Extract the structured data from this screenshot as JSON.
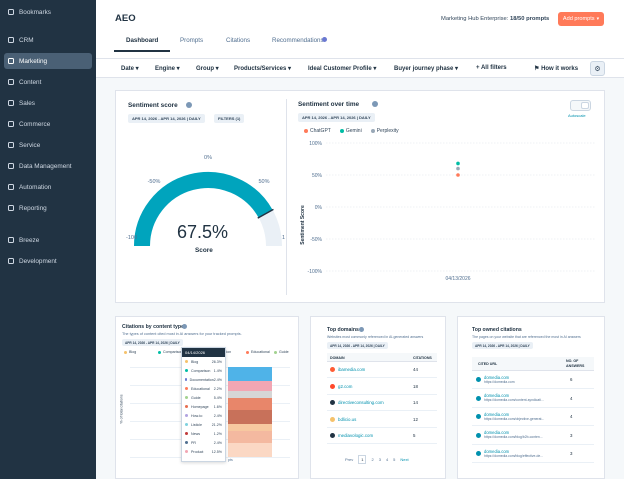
{
  "sidebar": {
    "items": [
      {
        "label": "Bookmarks",
        "icon": "bookmark-icon"
      },
      {
        "label": "CRM",
        "icon": "crm-icon"
      },
      {
        "label": "Marketing",
        "icon": "marketing-icon"
      },
      {
        "label": "Content",
        "icon": "content-icon"
      },
      {
        "label": "Sales",
        "icon": "sales-icon"
      },
      {
        "label": "Commerce",
        "icon": "commerce-icon"
      },
      {
        "label": "Service",
        "icon": "service-icon"
      },
      {
        "label": "Data Management",
        "icon": "data-management-icon"
      },
      {
        "label": "Automation",
        "icon": "automation-icon"
      },
      {
        "label": "Reporting",
        "icon": "reporting-icon"
      },
      {
        "label": "Breeze",
        "icon": "breeze-icon"
      },
      {
        "label": "Development",
        "icon": "development-icon"
      }
    ]
  },
  "header": {
    "title": "AEO",
    "plan_label": "Marketing Hub Enterprise:",
    "plan_count": "18/50 prompts",
    "add_button": "Add prompts"
  },
  "tabs": [
    "Dashboard",
    "Prompts",
    "Citations",
    "Recommendations"
  ],
  "filters": {
    "items": [
      "Date",
      "Engine",
      "Group",
      "Products/Services",
      "Ideal Customer Profile",
      "Buyer journey phase"
    ],
    "all_filters": "All filters",
    "how_it_works": "How it works"
  },
  "sentiment_score": {
    "title": "Sentiment score",
    "date_range": "APR 14, 2026 - APR 14, 2026 | DAILY",
    "filters": "FILTERS (1)",
    "value": "67.5%",
    "value_num": 67.5,
    "label": "Score",
    "ticks": [
      "0%",
      "-50%",
      "50%",
      "-100",
      "1"
    ]
  },
  "sentiment_over_time": {
    "title": "Sentiment over time",
    "date_range": "APR 14, 2026 - APR 14, 2026 | DAILY",
    "autoscale": "Autoscale",
    "legend": [
      {
        "name": "ChatGPT",
        "color": "#ff7a59"
      },
      {
        "name": "Gemini",
        "color": "#00bda5"
      },
      {
        "name": "Perplexity",
        "color": "#99a8b7"
      }
    ],
    "y_ticks": [
      "100%",
      "50%",
      "0%",
      "-50%",
      "-100%"
    ],
    "y_label": "Sentiment Score",
    "x_tick": "04/13/2026"
  },
  "chart_data": {
    "type": "scatter",
    "x": [
      "04/13/2026"
    ],
    "series": [
      {
        "name": "ChatGPT",
        "values": [
          50
        ]
      },
      {
        "name": "Gemini",
        "values": [
          68
        ]
      },
      {
        "name": "Perplexity",
        "values": [
          60
        ]
      }
    ],
    "ylabel": "Sentiment Score",
    "ylim": [
      -100,
      100
    ]
  },
  "citations_by_type": {
    "title": "Citations by content type",
    "subtitle": "The types of content cited most in AI answers for your tracked prompts.",
    "date_range": "APR 14, 2026 - APR 14, 2026 | DAILY",
    "legend": [
      "Blog",
      "Comparison",
      "Documentation",
      "Educational",
      "Guide"
    ],
    "y_label": "% of total citations",
    "tooltip_date": "04/14/2026",
    "tooltip_rows": [
      {
        "label": "Blog",
        "value": "26.3%",
        "color": "#f5c26b"
      },
      {
        "label": "Comparison",
        "value": "1.4%",
        "color": "#00bda5"
      },
      {
        "label": "Documentation",
        "value": "2.4%",
        "color": "#6a78d1"
      },
      {
        "label": "Educational",
        "value": "2.2%",
        "color": "#ff7a59"
      },
      {
        "label": "Guide",
        "value": "5.4%",
        "color": "#a2d28f"
      },
      {
        "label": "Homepage",
        "value": "1.6%",
        "color": "#e66e50"
      },
      {
        "label": "How-to",
        "value": "2.4%",
        "color": "#b1a3e0"
      },
      {
        "label": "Listicle",
        "value": "21.2%",
        "color": "#7fd1de"
      },
      {
        "label": "News",
        "value": "1.2%",
        "color": "#c03a3a"
      },
      {
        "label": "PR",
        "value": "2.4%",
        "color": "#516f90"
      },
      {
        "label": "Product",
        "value": "12.5%",
        "color": "#f2a6b3"
      }
    ],
    "bar_segments": [
      {
        "value": 6,
        "color": "#4fb3e8"
      },
      {
        "value": 4,
        "color": "#f2a6b3"
      },
      {
        "value": 3,
        "color": "#d6d6d6"
      },
      {
        "value": 5,
        "color": "#e8866a"
      },
      {
        "value": 6,
        "color": "#c8715a"
      },
      {
        "value": 3,
        "color": "#f7c8a0"
      },
      {
        "value": 5,
        "color": "#f4b9a0"
      },
      {
        "value": 6,
        "color": "#fbd8c4"
      }
    ],
    "x_tick": "pts"
  },
  "top_domains": {
    "title": "Top domains",
    "subtitle": "Websites most commonly referenced in AI-generated answers",
    "date_range": "APR 14, 2026 - APR 14, 2026 | DAILY",
    "col_domain": "DOMAIN",
    "col_citations": "CITATIONS",
    "rows": [
      {
        "domain": "ibamedia.com",
        "citations": "44"
      },
      {
        "domain": "g2.com",
        "citations": "18"
      },
      {
        "domain": "directiveconsulting.com",
        "citations": "14"
      },
      {
        "domain": "bdlicio.us",
        "citations": "12"
      },
      {
        "domain": "mediavologic.com",
        "citations": "5"
      }
    ],
    "pagination": {
      "prev": "Prev",
      "pages": [
        "1",
        "2",
        "3",
        "4",
        "5"
      ],
      "next": "Next"
    }
  },
  "top_owned": {
    "title": "Top owned citations",
    "subtitle": "The pages on your website that are referenced the most in AI answers",
    "date_range": "APR 14, 2026 - APR 14, 2026 | DAILY",
    "col_url": "CITED URL",
    "col_answers": "NO. OF ANSWERS",
    "rows": [
      {
        "title": "domedia.com",
        "url": "https://domedia.com",
        "count": "6"
      },
      {
        "title": "domedia.com",
        "url": "https://domedia.com/content-syndicati...",
        "count": "4"
      },
      {
        "title": "domedia.com",
        "url": "https://domedia.com/objective-generat...",
        "count": "4"
      },
      {
        "title": "domedia.com",
        "url": "https://domedia.com/blog/b2b-conten...",
        "count": "3"
      },
      {
        "title": "domedia.com",
        "url": "https://domedia.com/blog/effective-de...",
        "count": "3"
      }
    ]
  }
}
